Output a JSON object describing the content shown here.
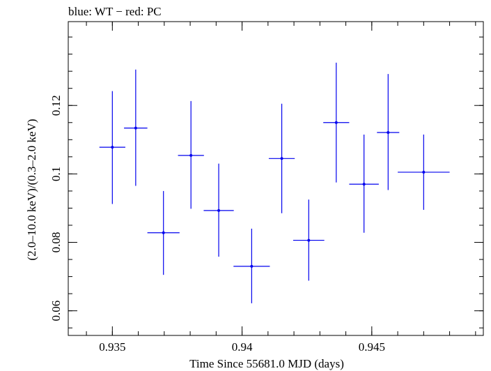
{
  "chart_data": {
    "type": "scatter",
    "title": "blue: WT − red: PC",
    "xlabel": "Time Since 55681.0 MJD (days)",
    "ylabel": "(2.0–10.0 keV)/(0.3–2.0 keV)",
    "xlim": [
      0.9333,
      0.9493
    ],
    "ylim": [
      0.0528,
      0.1445
    ],
    "xticks": [
      {
        "value": 0.935,
        "label": "0.935"
      },
      {
        "value": 0.94,
        "label": "0.94"
      },
      {
        "value": 0.945,
        "label": "0.945"
      }
    ],
    "yticks": [
      {
        "value": 0.06,
        "label": "0.06"
      },
      {
        "value": 0.08,
        "label": "0.08"
      },
      {
        "value": 0.1,
        "label": "0.1"
      },
      {
        "value": 0.12,
        "label": "0.12"
      }
    ],
    "grid": false,
    "series": [
      {
        "color": "#0000ee",
        "points": [
          {
            "x": 0.935,
            "xerr": 0.0005,
            "y": 0.1078,
            "ylo": 0.0912,
            "yhi": 0.1242
          },
          {
            "x": 0.9359,
            "xerr": 0.00045,
            "y": 0.1134,
            "ylo": 0.0965,
            "yhi": 0.1305
          },
          {
            "x": 0.93697,
            "xerr": 0.00062,
            "y": 0.0828,
            "ylo": 0.0705,
            "yhi": 0.095
          },
          {
            "x": 0.93803,
            "xerr": 0.0005,
            "y": 0.1054,
            "ylo": 0.0898,
            "yhi": 0.1213
          },
          {
            "x": 0.9391,
            "xerr": 0.00058,
            "y": 0.0893,
            "ylo": 0.0758,
            "yhi": 0.103
          },
          {
            "x": 0.94037,
            "xerr": 0.0007,
            "y": 0.073,
            "ylo": 0.0622,
            "yhi": 0.084
          },
          {
            "x": 0.94153,
            "xerr": 0.0005,
            "y": 0.1045,
            "ylo": 0.0885,
            "yhi": 0.1205
          },
          {
            "x": 0.94257,
            "xerr": 0.0006,
            "y": 0.0806,
            "ylo": 0.0688,
            "yhi": 0.0925
          },
          {
            "x": 0.94363,
            "xerr": 0.0005,
            "y": 0.115,
            "ylo": 0.0975,
            "yhi": 0.1325
          },
          {
            "x": 0.9447,
            "xerr": 0.00057,
            "y": 0.097,
            "ylo": 0.0828,
            "yhi": 0.1115
          },
          {
            "x": 0.94563,
            "xerr": 0.00043,
            "y": 0.1121,
            "ylo": 0.0953,
            "yhi": 0.1292
          },
          {
            "x": 0.947,
            "xerr": 0.001,
            "y": 0.1005,
            "ylo": 0.0895,
            "yhi": 0.1115
          }
        ]
      }
    ]
  }
}
